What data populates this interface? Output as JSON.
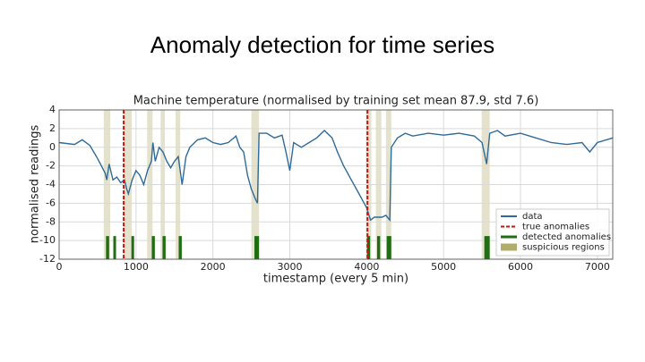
{
  "slide_title": "Anomaly detection for time series",
  "chart_data": {
    "type": "line",
    "title": "Machine temperature (normalised by training set mean 87.9, std 7.6)",
    "x_label": "timestamp (every 5 min)",
    "y_label": "normalised readings",
    "xlim": [
      0,
      7200
    ],
    "ylim": [
      -12,
      4
    ],
    "xticks": [
      0,
      1000,
      2000,
      3000,
      4000,
      5000,
      6000,
      7000
    ],
    "yticks": [
      -12,
      -10,
      -8,
      -6,
      -4,
      -2,
      0,
      2,
      4
    ],
    "grid": true,
    "legend": "lower right",
    "series": [
      {
        "name": "data",
        "color": "#2f6b9a",
        "x": [
          0,
          200,
          300,
          400,
          450,
          500,
          550,
          600,
          620,
          650,
          700,
          750,
          800,
          850,
          880,
          900,
          950,
          1000,
          1050,
          1100,
          1150,
          1200,
          1220,
          1250,
          1300,
          1350,
          1400,
          1450,
          1500,
          1550,
          1600,
          1650,
          1700,
          1800,
          1900,
          2000,
          2100,
          2200,
          2300,
          2350,
          2400,
          2450,
          2500,
          2550,
          2580,
          2600,
          2700,
          2800,
          2900,
          2950,
          3000,
          3050,
          3150,
          3250,
          3350,
          3450,
          3550,
          3620,
          3700,
          3800,
          3900,
          4000,
          4050,
          4100,
          4200,
          4250,
          4300,
          4320,
          4400,
          4500,
          4600,
          4800,
          5000,
          5200,
          5400,
          5500,
          5560,
          5600,
          5700,
          5800,
          6000,
          6200,
          6400,
          6600,
          6800,
          6900,
          7000,
          7200
        ],
        "values": [
          0.5,
          0.3,
          0.8,
          0.2,
          -0.5,
          -1.2,
          -2,
          -2.8,
          -3.5,
          -1.8,
          -3.5,
          -3.2,
          -3.8,
          -3.5,
          -4.5,
          -5,
          -3.5,
          -2.5,
          -3,
          -4,
          -2.5,
          -1.5,
          0.5,
          -1.5,
          0,
          -0.5,
          -1.5,
          -2.2,
          -1.5,
          -1,
          -4,
          -1,
          0,
          0.8,
          1,
          0.5,
          0.3,
          0.5,
          1.2,
          0,
          -0.5,
          -3,
          -4.5,
          -5.5,
          -6,
          1.5,
          1.5,
          1,
          1.3,
          -0.5,
          -2.5,
          0.5,
          0,
          0.5,
          1,
          1.8,
          1,
          -0.5,
          -2,
          -3.5,
          -5,
          -6.5,
          -7.8,
          -7.5,
          -7.5,
          -7.3,
          -7.8,
          0,
          1,
          1.5,
          1.2,
          1.5,
          1.3,
          1.5,
          1.2,
          0.5,
          -1.8,
          1.5,
          1.8,
          1.2,
          1.5,
          1,
          0.5,
          0.3,
          0.5,
          -0.5,
          0.5,
          1
        ]
      },
      {
        "name": "true anomalies",
        "color": "#cc1111",
        "x": [
          840,
          4010
        ]
      },
      {
        "name": "detected anomalies",
        "color": "#1f6e12",
        "ranges": [
          [
            610,
            650
          ],
          [
            705,
            740
          ],
          [
            940,
            975
          ],
          [
            1205,
            1245
          ],
          [
            1345,
            1385
          ],
          [
            1555,
            1595
          ],
          [
            2540,
            2600
          ],
          [
            4005,
            4045
          ],
          [
            4135,
            4175
          ],
          [
            4260,
            4320
          ],
          [
            5530,
            5600
          ]
        ]
      },
      {
        "name": "suspicious regions",
        "color": "#b3ad6c",
        "ranges": [
          [
            580,
            665
          ],
          [
            830,
            945
          ],
          [
            1145,
            1215
          ],
          [
            1320,
            1375
          ],
          [
            1515,
            1575
          ],
          [
            2500,
            2600
          ],
          [
            3990,
            4060
          ],
          [
            4120,
            4190
          ],
          [
            4250,
            4320
          ],
          [
            5495,
            5600
          ]
        ]
      }
    ]
  }
}
